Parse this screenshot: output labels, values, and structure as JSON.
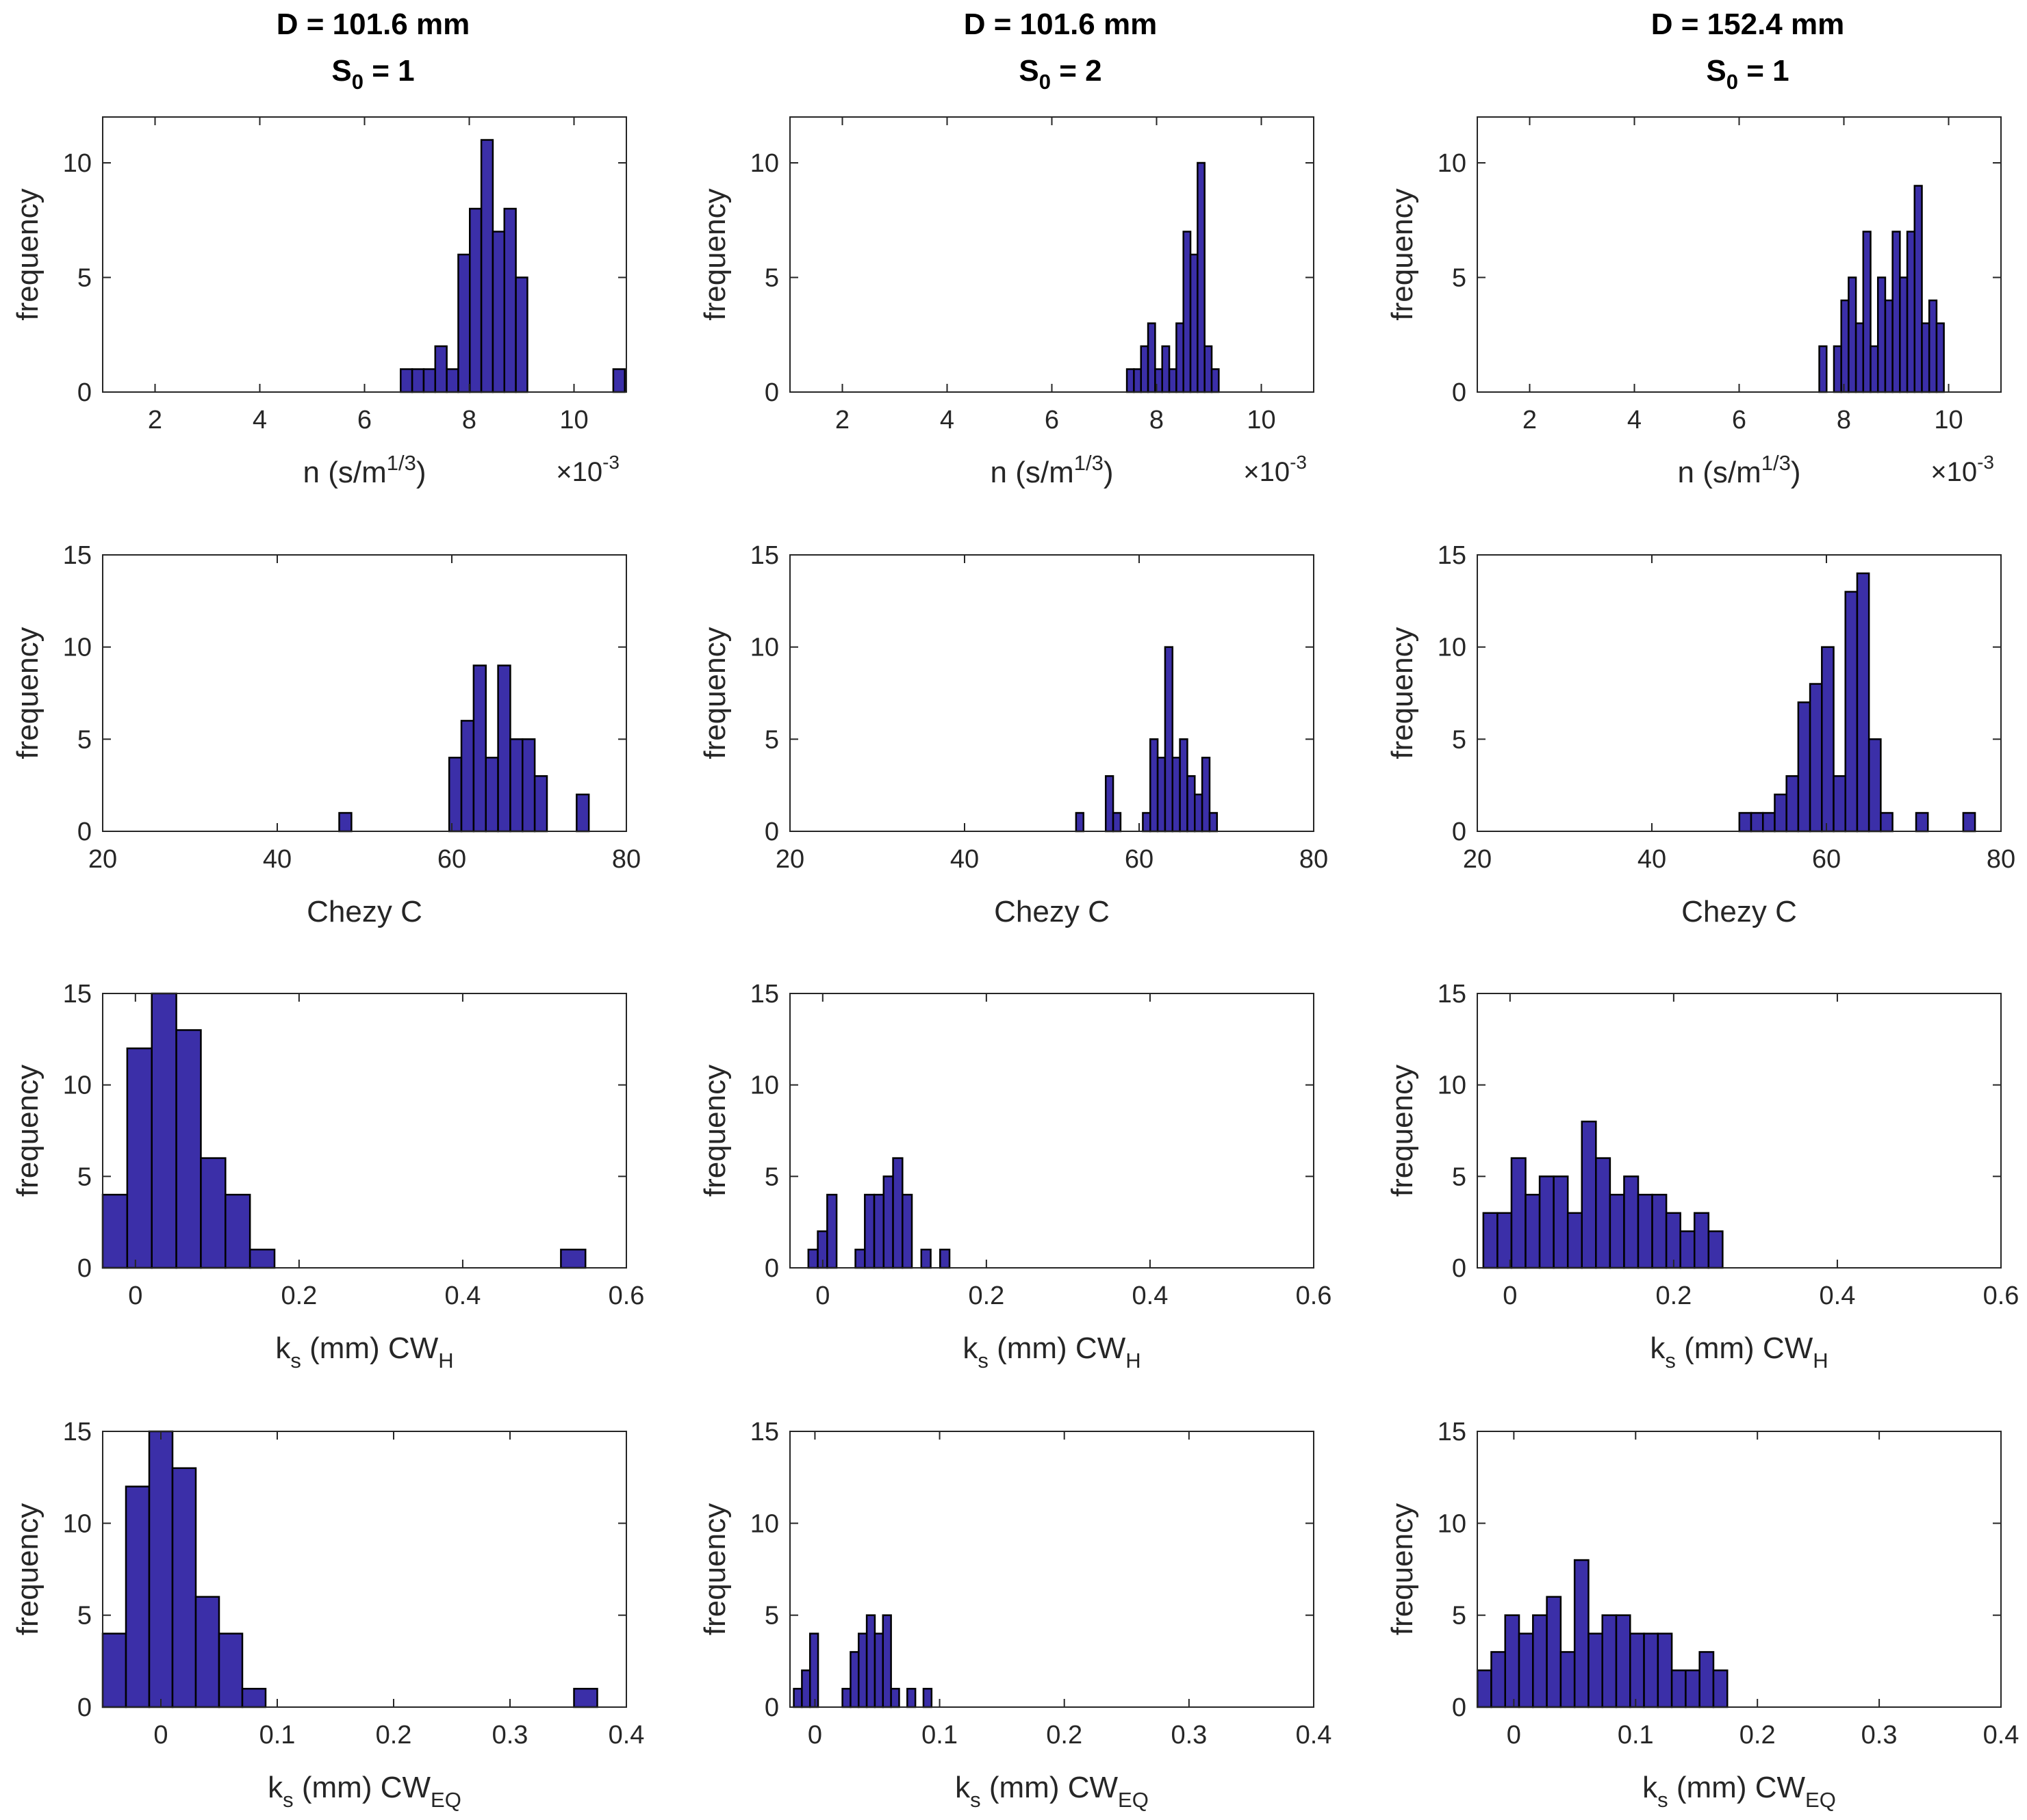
{
  "figure": {
    "columns": [
      {
        "title_line1": "D = 101.6 mm",
        "title_s": "S",
        "title_s_sub": "0",
        "title_s_rest": " = 1"
      },
      {
        "title_line1": "D = 101.6 mm",
        "title_s": "S",
        "title_s_sub": "0",
        "title_s_rest": " = 2"
      },
      {
        "title_line1": "D = 152.4 mm",
        "title_s": "S",
        "title_s_sub": "0",
        "title_s_rest": " = 1"
      }
    ],
    "bar_color": "#3b2fa8",
    "bar_edge_color": "#000000",
    "ylabel": "frequency",
    "row_xlabels": [
      {
        "main": "n  (s/m",
        "sup": "1/3",
        "tail": ")",
        "exponent_base": "×10",
        "exponent_power": "-3"
      },
      {
        "main": "Chezy C"
      },
      {
        "pre": "k",
        "pre_sub": "s",
        "main": " (mm) CW",
        "sub": "H"
      },
      {
        "pre": "k",
        "pre_sub": "s",
        "main": " (mm) CW",
        "sub": "EQ"
      }
    ]
  },
  "chart_data": [
    {
      "id": "n-101.6-s1",
      "type": "bar",
      "row": 0,
      "col": 0,
      "title": "D = 101.6 mm, S0 = 1",
      "xlabel": "n (s/m^1/3) ×10^-3",
      "ylabel": "frequency",
      "xlim": [
        1.0,
        11.0
      ],
      "ylim": [
        0,
        12
      ],
      "xticks": [
        2,
        4,
        6,
        8,
        10
      ],
      "yticks": [
        0,
        5,
        10
      ],
      "bin_width": 0.22,
      "x": [
        6.8,
        7.02,
        7.24,
        7.46,
        7.68,
        7.9,
        8.12,
        8.34,
        8.56,
        8.78,
        9.0,
        10.86
      ],
      "values": [
        1,
        1,
        1,
        2,
        1,
        6,
        8,
        11,
        7,
        8,
        5,
        1
      ]
    },
    {
      "id": "n-101.6-s2",
      "type": "bar",
      "row": 0,
      "col": 1,
      "title": "D = 101.6 mm, S0 = 2",
      "xlabel": "n (s/m^1/3) ×10^-3",
      "ylabel": "frequency",
      "xlim": [
        1.0,
        11.0
      ],
      "ylim": [
        0,
        12
      ],
      "xticks": [
        2,
        4,
        6,
        8,
        10
      ],
      "yticks": [
        0,
        5,
        10
      ],
      "bin_width": 0.135,
      "x": [
        7.5,
        7.635,
        7.77,
        7.905,
        8.04,
        8.175,
        8.31,
        8.445,
        8.58,
        8.715,
        8.85,
        8.985,
        9.12
      ],
      "values": [
        1,
        1,
        2,
        3,
        1,
        2,
        1,
        3,
        7,
        6,
        10,
        2,
        1
      ]
    },
    {
      "id": "n-152.4-s1",
      "type": "bar",
      "row": 0,
      "col": 2,
      "title": "D = 152.4 mm, S0 = 1",
      "xlabel": "n (s/m^1/3) ×10^-3",
      "ylabel": "frequency",
      "xlim": [
        1.0,
        11.0
      ],
      "ylim": [
        0,
        12
      ],
      "xticks": [
        2,
        4,
        6,
        8,
        10
      ],
      "yticks": [
        0,
        5,
        10
      ],
      "bin_width": 0.14,
      "x": [
        7.6,
        7.88,
        8.02,
        8.16,
        8.3,
        8.44,
        8.58,
        8.72,
        8.86,
        9.0,
        9.14,
        9.28,
        9.42,
        9.56,
        9.7,
        9.84
      ],
      "values": [
        2,
        2,
        4,
        5,
        3,
        7,
        2,
        5,
        4,
        7,
        5,
        7,
        9,
        3,
        4,
        3
      ]
    },
    {
      "id": "c-101.6-s1",
      "type": "bar",
      "row": 1,
      "col": 0,
      "title": "D = 101.6 mm, S0 = 1",
      "xlabel": "Chezy C",
      "ylabel": "frequency",
      "xlim": [
        20,
        80
      ],
      "ylim": [
        0,
        15
      ],
      "xticks": [
        20,
        40,
        60,
        80
      ],
      "yticks": [
        0,
        5,
        10,
        15
      ],
      "bin_width": 1.4,
      "x": [
        47.8,
        60.4,
        61.8,
        63.2,
        64.6,
        66.0,
        67.4,
        68.8,
        70.2,
        75.0
      ],
      "values": [
        1,
        4,
        6,
        9,
        4,
        9,
        5,
        5,
        3,
        2
      ]
    },
    {
      "id": "c-101.6-s2",
      "type": "bar",
      "row": 1,
      "col": 1,
      "title": "D = 101.6 mm, S0 = 2",
      "xlabel": "Chezy C",
      "ylabel": "frequency",
      "xlim": [
        20,
        80
      ],
      "ylim": [
        0,
        15
      ],
      "xticks": [
        20,
        40,
        60,
        80
      ],
      "yticks": [
        0,
        5,
        10,
        15
      ],
      "bin_width": 0.85,
      "x": [
        53.2,
        56.6,
        57.45,
        60.85,
        61.7,
        62.55,
        63.4,
        64.25,
        65.1,
        65.95,
        66.8,
        67.65,
        68.5
      ],
      "values": [
        1,
        3,
        1,
        1,
        5,
        4,
        10,
        4,
        5,
        3,
        2,
        4,
        1
      ]
    },
    {
      "id": "c-152.4-s1",
      "type": "bar",
      "row": 1,
      "col": 2,
      "title": "D = 152.4 mm, S0 = 1",
      "xlabel": "Chezy C",
      "ylabel": "frequency",
      "xlim": [
        20,
        80
      ],
      "ylim": [
        0,
        15
      ],
      "xticks": [
        20,
        40,
        60,
        80
      ],
      "yticks": [
        0,
        5,
        10,
        15
      ],
      "bin_width": 1.35,
      "x": [
        50.7,
        52.05,
        53.4,
        54.75,
        56.1,
        57.45,
        58.8,
        60.15,
        61.5,
        62.85,
        64.2,
        65.55,
        66.9,
        70.95,
        76.35
      ],
      "values": [
        1,
        1,
        1,
        2,
        3,
        7,
        8,
        10,
        3,
        13,
        14,
        5,
        1,
        1,
        1
      ]
    },
    {
      "id": "kh-101.6-s1",
      "type": "bar",
      "row": 2,
      "col": 0,
      "title": "D = 101.6 mm, S0 = 1",
      "xlabel": "ks (mm) CW_H",
      "ylabel": "frequency",
      "xlim": [
        -0.04,
        0.6
      ],
      "ylim": [
        0,
        15
      ],
      "xticks": [
        0,
        0.2,
        0.4,
        0.6
      ],
      "yticks": [
        0,
        5,
        10,
        15
      ],
      "bin_width": 0.03,
      "x": [
        -0.025,
        0.005,
        0.035,
        0.065,
        0.095,
        0.125,
        0.155,
        0.535
      ],
      "values": [
        4,
        12,
        15,
        13,
        6,
        4,
        1,
        1
      ]
    },
    {
      "id": "kh-101.6-s2",
      "type": "bar",
      "row": 2,
      "col": 1,
      "title": "D = 101.6 mm, S0 = 2",
      "xlabel": "ks (mm) CW_H",
      "ylabel": "frequency",
      "xlim": [
        -0.04,
        0.6
      ],
      "ylim": [
        0,
        15
      ],
      "xticks": [
        0,
        0.2,
        0.4,
        0.6
      ],
      "yticks": [
        0,
        5,
        10,
        15
      ],
      "bin_width": 0.0115,
      "x": [
        -0.0118,
        -0.0003,
        0.0112,
        0.0457,
        0.0572,
        0.0687,
        0.0802,
        0.0917,
        0.1032,
        0.1262,
        0.1492
      ],
      "values": [
        1,
        2,
        4,
        1,
        4,
        4,
        5,
        6,
        4,
        1,
        1
      ]
    },
    {
      "id": "kh-152.4-s1",
      "type": "bar",
      "row": 2,
      "col": 2,
      "title": "D = 152.4 mm, S0 = 1",
      "xlabel": "ks (mm) CW_H",
      "ylabel": "frequency",
      "xlim": [
        -0.04,
        0.6
      ],
      "ylim": [
        0,
        15
      ],
      "xticks": [
        0,
        0.2,
        0.4,
        0.6
      ],
      "yticks": [
        0,
        5,
        10,
        15
      ],
      "bin_width": 0.0172,
      "x": [
        -0.024,
        -0.0068,
        0.0104,
        0.0276,
        0.0448,
        0.062,
        0.0792,
        0.0964,
        0.1136,
        0.1308,
        0.148,
        0.1652,
        0.1824,
        0.1996,
        0.2168,
        0.234,
        0.2512
      ],
      "values": [
        3,
        3,
        6,
        4,
        5,
        5,
        3,
        8,
        6,
        4,
        5,
        4,
        4,
        3,
        2,
        3,
        2
      ]
    },
    {
      "id": "keq-101.6-s1",
      "type": "bar",
      "row": 3,
      "col": 0,
      "title": "D = 101.6 mm, S0 = 1",
      "xlabel": "ks (mm) CW_EQ",
      "ylabel": "frequency",
      "xlim": [
        -0.05,
        0.4
      ],
      "ylim": [
        0,
        15
      ],
      "xticks": [
        0,
        0.1,
        0.2,
        0.3,
        0.4
      ],
      "yticks": [
        0,
        5,
        10,
        15
      ],
      "bin_width": 0.02,
      "x": [
        -0.04,
        -0.02,
        0.0,
        0.02,
        0.04,
        0.06,
        0.08,
        0.365
      ],
      "values": [
        4,
        12,
        15,
        13,
        6,
        4,
        1,
        1
      ]
    },
    {
      "id": "keq-101.6-s2",
      "type": "bar",
      "row": 3,
      "col": 1,
      "title": "D = 101.6 mm, S0 = 2",
      "xlabel": "ks (mm) CW_EQ",
      "ylabel": "frequency",
      "xlim": [
        -0.02,
        0.4
      ],
      "ylim": [
        0,
        15
      ],
      "xticks": [
        0,
        0.1,
        0.2,
        0.3,
        0.4
      ],
      "yticks": [
        0,
        5,
        10,
        15
      ],
      "bin_width": 0.0065,
      "x": [
        -0.0137,
        -0.0072,
        -0.0007,
        0.0253,
        0.0318,
        0.0383,
        0.0448,
        0.0513,
        0.0578,
        0.0643,
        0.0773,
        0.0903
      ],
      "values": [
        1,
        2,
        4,
        1,
        3,
        4,
        5,
        4,
        5,
        1,
        1,
        1
      ]
    },
    {
      "id": "keq-152.4-s1",
      "type": "bar",
      "row": 3,
      "col": 2,
      "title": "D = 152.4 mm, S0 = 1",
      "xlabel": "ks (mm) CW_EQ",
      "ylabel": "frequency",
      "xlim": [
        -0.03,
        0.4
      ],
      "ylim": [
        0,
        15
      ],
      "xticks": [
        0,
        0.1,
        0.2,
        0.3,
        0.4
      ],
      "yticks": [
        0,
        5,
        10,
        15
      ],
      "bin_width": 0.0114,
      "x": [
        -0.0242,
        -0.0128,
        -0.0014,
        0.01,
        0.0214,
        0.0328,
        0.0442,
        0.0556,
        0.067,
        0.0784,
        0.0898,
        0.1012,
        0.1126,
        0.124,
        0.1354,
        0.1468,
        0.1582,
        0.1696
      ],
      "values": [
        2,
        3,
        5,
        4,
        5,
        6,
        3,
        8,
        4,
        5,
        5,
        4,
        4,
        4,
        2,
        2,
        3,
        2
      ]
    }
  ]
}
